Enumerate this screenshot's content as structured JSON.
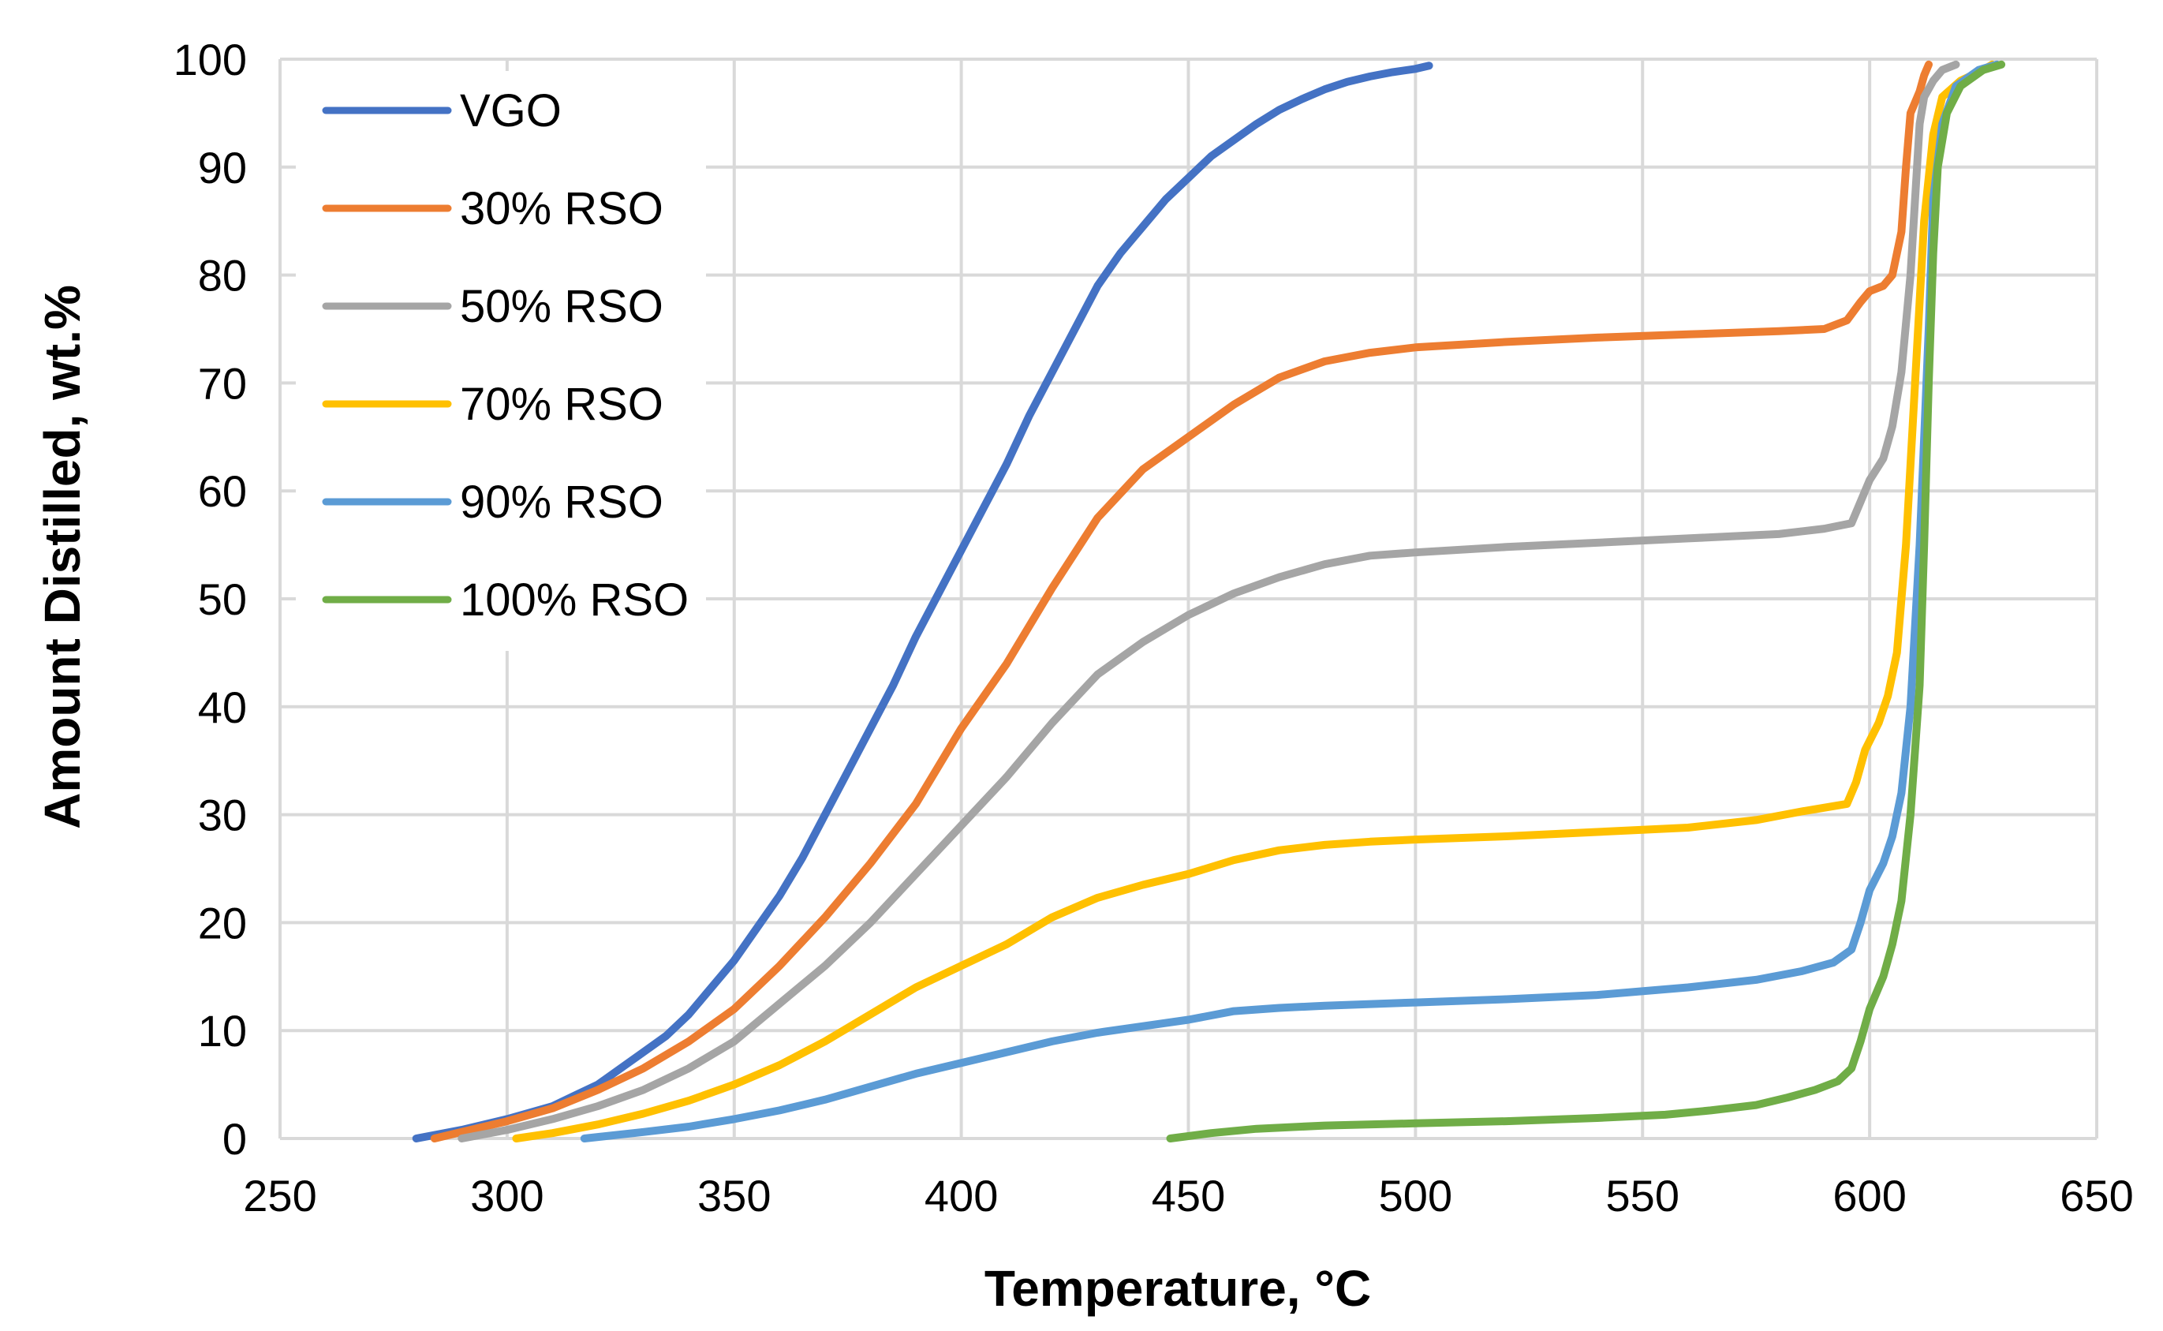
{
  "chart_data": {
    "type": "line",
    "title": "",
    "xlabel": "Temperature, °C",
    "ylabel": "Amount Distilled, wt.%",
    "xlim": [
      250,
      650
    ],
    "ylim": [
      0,
      100
    ],
    "xticks": [
      250,
      300,
      350,
      400,
      450,
      500,
      550,
      600,
      650
    ],
    "yticks": [
      0,
      10,
      20,
      30,
      40,
      50,
      60,
      70,
      80,
      90,
      100
    ],
    "grid": true,
    "legend_position": "top-left",
    "series": [
      {
        "name": "VGO",
        "color": "#4472C4",
        "points": [
          [
            280,
            0
          ],
          [
            290,
            0.8
          ],
          [
            300,
            1.8
          ],
          [
            310,
            3
          ],
          [
            315,
            4
          ],
          [
            320,
            5
          ],
          [
            325,
            6.5
          ],
          [
            330,
            8
          ],
          [
            335,
            9.5
          ],
          [
            340,
            11.5
          ],
          [
            345,
            14
          ],
          [
            350,
            16.5
          ],
          [
            355,
            19.5
          ],
          [
            360,
            22.5
          ],
          [
            365,
            26
          ],
          [
            370,
            30
          ],
          [
            375,
            34
          ],
          [
            380,
            38
          ],
          [
            385,
            42
          ],
          [
            390,
            46.5
          ],
          [
            395,
            50.5
          ],
          [
            400,
            54.5
          ],
          [
            405,
            58.5
          ],
          [
            410,
            62.5
          ],
          [
            415,
            67
          ],
          [
            420,
            71
          ],
          [
            425,
            75
          ],
          [
            430,
            79
          ],
          [
            435,
            82
          ],
          [
            440,
            84.5
          ],
          [
            445,
            87
          ],
          [
            450,
            89
          ],
          [
            455,
            91
          ],
          [
            460,
            92.5
          ],
          [
            465,
            94
          ],
          [
            470,
            95.3
          ],
          [
            475,
            96.3
          ],
          [
            480,
            97.2
          ],
          [
            485,
            97.9
          ],
          [
            490,
            98.4
          ],
          [
            495,
            98.8
          ],
          [
            500,
            99.1
          ],
          [
            503,
            99.4
          ]
        ]
      },
      {
        "name": "30% RSO",
        "color": "#ED7D31",
        "points": [
          [
            284,
            0
          ],
          [
            290,
            0.6
          ],
          [
            300,
            1.6
          ],
          [
            310,
            2.8
          ],
          [
            320,
            4.5
          ],
          [
            330,
            6.5
          ],
          [
            340,
            9
          ],
          [
            350,
            12
          ],
          [
            360,
            16
          ],
          [
            370,
            20.5
          ],
          [
            380,
            25.5
          ],
          [
            390,
            31
          ],
          [
            400,
            38
          ],
          [
            410,
            44
          ],
          [
            420,
            51
          ],
          [
            430,
            57.5
          ],
          [
            440,
            62
          ],
          [
            450,
            65
          ],
          [
            460,
            68
          ],
          [
            470,
            70.5
          ],
          [
            480,
            72
          ],
          [
            490,
            72.8
          ],
          [
            500,
            73.3
          ],
          [
            520,
            73.8
          ],
          [
            540,
            74.2
          ],
          [
            560,
            74.5
          ],
          [
            580,
            74.8
          ],
          [
            590,
            75
          ],
          [
            595,
            75.8
          ],
          [
            598,
            77.5
          ],
          [
            600,
            78.5
          ],
          [
            603,
            79
          ],
          [
            605,
            80
          ],
          [
            607,
            84
          ],
          [
            608,
            90
          ],
          [
            609,
            95
          ],
          [
            611,
            97
          ],
          [
            612,
            98.5
          ],
          [
            613,
            99.5
          ]
        ]
      },
      {
        "name": "50% RSO",
        "color": "#A5A5A5",
        "points": [
          [
            290,
            0
          ],
          [
            300,
            0.8
          ],
          [
            310,
            1.8
          ],
          [
            320,
            3
          ],
          [
            330,
            4.5
          ],
          [
            340,
            6.5
          ],
          [
            350,
            9
          ],
          [
            360,
            12.5
          ],
          [
            370,
            16
          ],
          [
            380,
            20
          ],
          [
            390,
            24.5
          ],
          [
            400,
            29
          ],
          [
            410,
            33.5
          ],
          [
            420,
            38.5
          ],
          [
            430,
            43
          ],
          [
            440,
            46
          ],
          [
            450,
            48.5
          ],
          [
            460,
            50.5
          ],
          [
            470,
            52
          ],
          [
            480,
            53.2
          ],
          [
            490,
            54
          ],
          [
            500,
            54.3
          ],
          [
            520,
            54.8
          ],
          [
            540,
            55.2
          ],
          [
            560,
            55.6
          ],
          [
            580,
            56
          ],
          [
            590,
            56.5
          ],
          [
            596,
            57
          ],
          [
            598,
            59
          ],
          [
            600,
            61
          ],
          [
            603,
            63
          ],
          [
            605,
            66
          ],
          [
            607,
            71
          ],
          [
            609,
            80
          ],
          [
            610,
            87
          ],
          [
            611,
            94
          ],
          [
            612,
            96.5
          ],
          [
            614,
            98
          ],
          [
            616,
            99
          ],
          [
            619,
            99.5
          ]
        ]
      },
      {
        "name": "70% RSO",
        "color": "#FFC000",
        "points": [
          [
            302,
            0
          ],
          [
            310,
            0.5
          ],
          [
            320,
            1.3
          ],
          [
            330,
            2.3
          ],
          [
            340,
            3.5
          ],
          [
            350,
            5
          ],
          [
            360,
            6.8
          ],
          [
            370,
            9
          ],
          [
            380,
            11.5
          ],
          [
            390,
            14
          ],
          [
            400,
            16
          ],
          [
            410,
            18
          ],
          [
            420,
            20.5
          ],
          [
            430,
            22.3
          ],
          [
            440,
            23.5
          ],
          [
            450,
            24.5
          ],
          [
            460,
            25.8
          ],
          [
            470,
            26.7
          ],
          [
            480,
            27.2
          ],
          [
            490,
            27.5
          ],
          [
            500,
            27.7
          ],
          [
            520,
            28
          ],
          [
            540,
            28.4
          ],
          [
            560,
            28.8
          ],
          [
            575,
            29.5
          ],
          [
            585,
            30.3
          ],
          [
            595,
            31
          ],
          [
            597,
            33
          ],
          [
            599,
            36
          ],
          [
            602,
            38.5
          ],
          [
            604,
            41
          ],
          [
            606,
            45
          ],
          [
            608,
            55
          ],
          [
            610,
            70
          ],
          [
            612,
            85
          ],
          [
            614,
            93
          ],
          [
            616,
            96.5
          ],
          [
            620,
            98
          ],
          [
            625,
            99
          ],
          [
            627,
            99.5
          ]
        ]
      },
      {
        "name": "90% RSO",
        "color": "#5B9BD5",
        "points": [
          [
            317,
            0
          ],
          [
            330,
            0.6
          ],
          [
            340,
            1.1
          ],
          [
            350,
            1.8
          ],
          [
            360,
            2.6
          ],
          [
            370,
            3.6
          ],
          [
            380,
            4.8
          ],
          [
            390,
            6
          ],
          [
            400,
            7
          ],
          [
            410,
            8
          ],
          [
            420,
            9
          ],
          [
            430,
            9.8
          ],
          [
            440,
            10.4
          ],
          [
            450,
            11
          ],
          [
            460,
            11.8
          ],
          [
            470,
            12.1
          ],
          [
            480,
            12.3
          ],
          [
            500,
            12.6
          ],
          [
            520,
            12.9
          ],
          [
            540,
            13.3
          ],
          [
            560,
            14
          ],
          [
            575,
            14.7
          ],
          [
            585,
            15.5
          ],
          [
            592,
            16.3
          ],
          [
            596,
            17.5
          ],
          [
            598,
            20
          ],
          [
            600,
            23
          ],
          [
            603,
            25.5
          ],
          [
            605,
            28
          ],
          [
            607,
            32
          ],
          [
            609,
            40
          ],
          [
            611,
            55
          ],
          [
            613,
            75
          ],
          [
            614,
            87
          ],
          [
            616,
            94
          ],
          [
            619,
            97.5
          ],
          [
            624,
            99
          ],
          [
            628,
            99.5
          ]
        ]
      },
      {
        "name": "100% RSO",
        "color": "#70AD47",
        "points": [
          [
            446,
            0
          ],
          [
            455,
            0.5
          ],
          [
            465,
            0.9
          ],
          [
            480,
            1.2
          ],
          [
            500,
            1.4
          ],
          [
            520,
            1.6
          ],
          [
            540,
            1.9
          ],
          [
            555,
            2.2
          ],
          [
            565,
            2.6
          ],
          [
            575,
            3.1
          ],
          [
            582,
            3.8
          ],
          [
            588,
            4.5
          ],
          [
            593,
            5.3
          ],
          [
            596,
            6.5
          ],
          [
            598,
            9
          ],
          [
            600,
            12
          ],
          [
            603,
            15
          ],
          [
            605,
            18
          ],
          [
            607,
            22
          ],
          [
            609,
            30
          ],
          [
            611,
            42
          ],
          [
            612,
            55
          ],
          [
            613,
            70
          ],
          [
            614,
            82
          ],
          [
            615,
            90
          ],
          [
            617,
            95
          ],
          [
            620,
            97.5
          ],
          [
            625,
            99
          ],
          [
            629,
            99.5
          ]
        ]
      }
    ]
  }
}
